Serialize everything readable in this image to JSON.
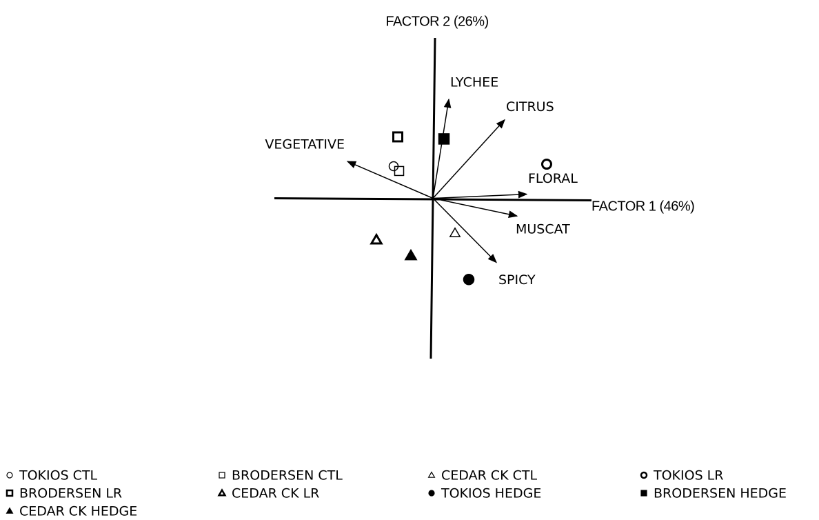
{
  "chart_data": {
    "type": "biplot",
    "x_label": "FACTOR 1 (46%)",
    "y_label": "FACTOR 2 (26%)",
    "xlim": [
      -2.3,
      2.3
    ],
    "ylim": [
      -2.35,
      2.35
    ],
    "color": "#000000",
    "series": [
      {
        "name": "TOKIOS CTL",
        "marker": "circle",
        "style": "open",
        "x": [
          -0.57
        ],
        "y": [
          0.47
        ]
      },
      {
        "name": "BRODERSEN CTL",
        "marker": "square",
        "style": "open",
        "x": [
          -0.49
        ],
        "y": [
          0.4
        ]
      },
      {
        "name": "CEDAR CK CTL",
        "marker": "triangle",
        "style": "open",
        "x": [
          0.32
        ],
        "y": [
          -0.51
        ]
      },
      {
        "name": "TOKIOS LR",
        "marker": "circle",
        "style": "thick",
        "x": [
          1.65
        ],
        "y": [
          0.5
        ]
      },
      {
        "name": "BRODERSEN LR",
        "marker": "square",
        "style": "thick",
        "x": [
          -0.51
        ],
        "y": [
          0.9
        ]
      },
      {
        "name": "CEDAR CK LR",
        "marker": "triangle",
        "style": "thick",
        "x": [
          -0.82
        ],
        "y": [
          -0.61
        ]
      },
      {
        "name": "TOKIOS HEDGE",
        "marker": "circle",
        "style": "filled",
        "x": [
          0.52
        ],
        "y": [
          -1.19
        ]
      },
      {
        "name": "BRODERSEN HEDGE",
        "marker": "square",
        "style": "filled",
        "x": [
          0.16
        ],
        "y": [
          0.87
        ]
      },
      {
        "name": "CEDAR CK HEDGE",
        "marker": "triangle",
        "style": "filled",
        "x": [
          -0.32
        ],
        "y": [
          -0.84
        ]
      }
    ],
    "vectors": [
      {
        "name": "LYCHEE",
        "x": 0.23,
        "y": 1.45
      },
      {
        "name": "CITRUS",
        "x": 1.04,
        "y": 1.15
      },
      {
        "name": "VEGETATIVE",
        "x": -1.24,
        "y": 0.54
      },
      {
        "name": "FLORAL",
        "x": 1.36,
        "y": 0.06
      },
      {
        "name": "MUSCAT",
        "x": 1.22,
        "y": -0.26
      },
      {
        "name": "SPICY",
        "x": 0.92,
        "y": -0.94
      }
    ]
  }
}
